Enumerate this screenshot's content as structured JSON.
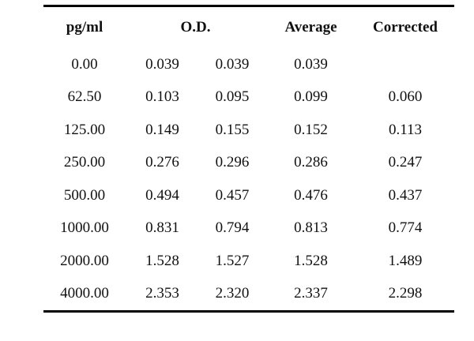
{
  "table": {
    "headers": {
      "pgml": "pg/ml",
      "od": "O.D.",
      "average": "Average",
      "corrected": "Corrected"
    },
    "rows": [
      {
        "pgml": "0.00",
        "od1": "0.039",
        "od2": "0.039",
        "average": "0.039",
        "corrected": ""
      },
      {
        "pgml": "62.50",
        "od1": "0.103",
        "od2": "0.095",
        "average": "0.099",
        "corrected": "0.060"
      },
      {
        "pgml": "125.00",
        "od1": "0.149",
        "od2": "0.155",
        "average": "0.152",
        "corrected": "0.113"
      },
      {
        "pgml": "250.00",
        "od1": "0.276",
        "od2": "0.296",
        "average": "0.286",
        "corrected": "0.247"
      },
      {
        "pgml": "500.00",
        "od1": "0.494",
        "od2": "0.457",
        "average": "0.476",
        "corrected": "0.437"
      },
      {
        "pgml": "1000.00",
        "od1": "0.831",
        "od2": "0.794",
        "average": "0.813",
        "corrected": "0.774"
      },
      {
        "pgml": "2000.00",
        "od1": "1.528",
        "od2": "1.527",
        "average": "1.528",
        "corrected": "1.489"
      },
      {
        "pgml": "4000.00",
        "od1": "2.353",
        "od2": "2.320",
        "average": "2.337",
        "corrected": "2.298"
      }
    ]
  }
}
